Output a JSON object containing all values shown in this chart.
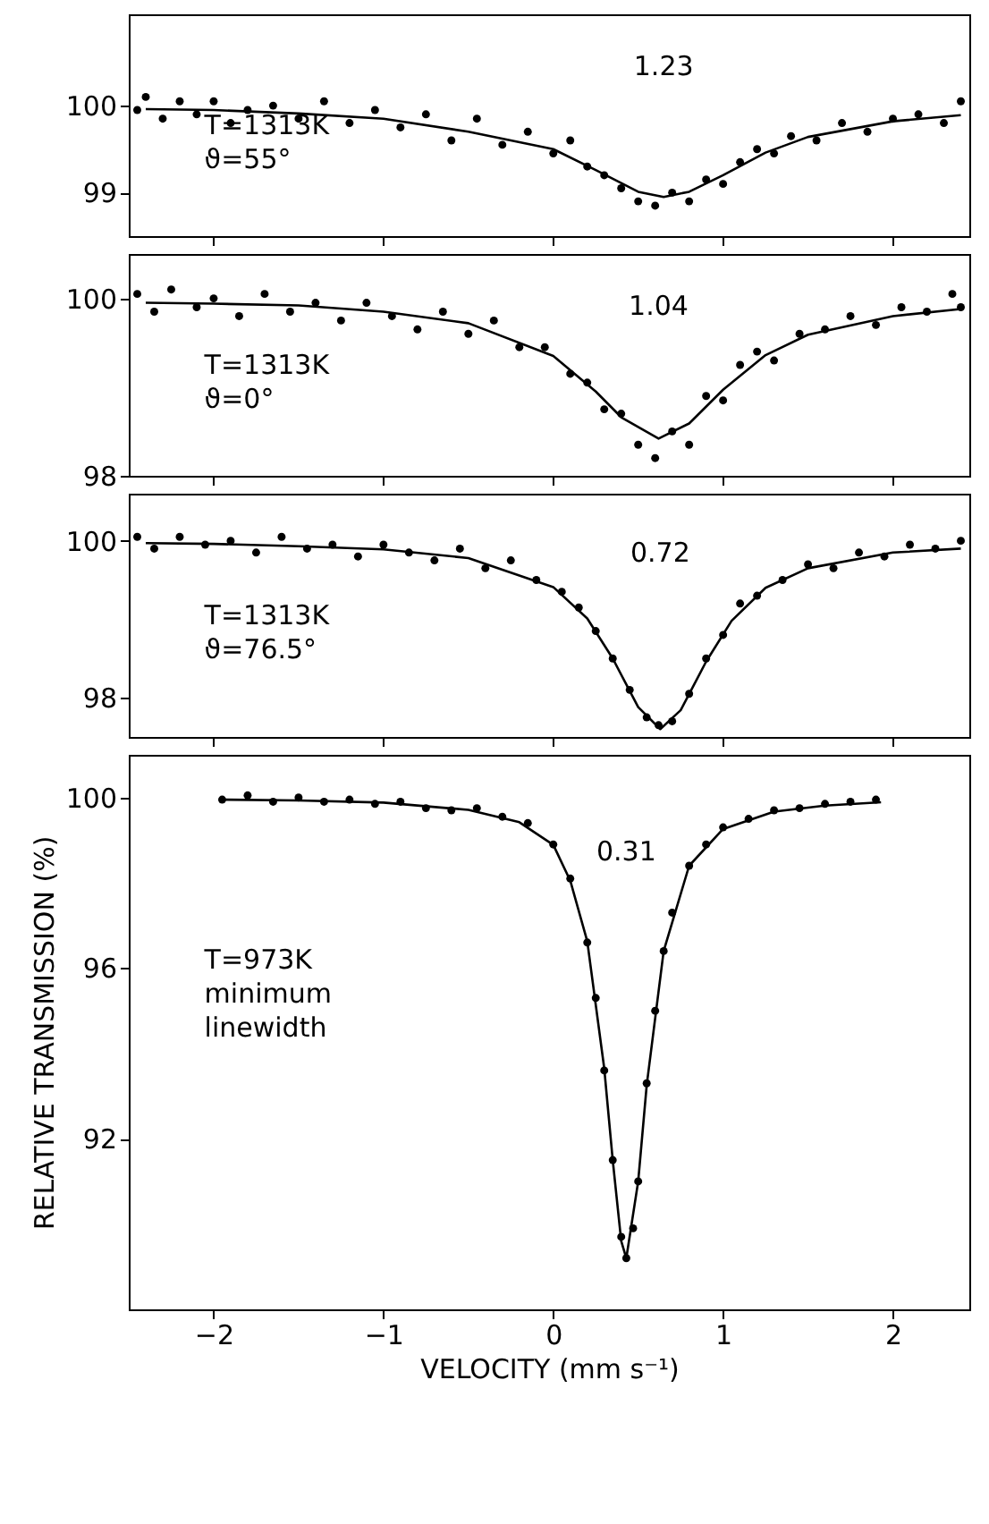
{
  "chart_data": [
    {
      "type": "scatter",
      "xlim": [
        -2.5,
        2.45
      ],
      "xticks": [
        -2,
        -1,
        0,
        1,
        2
      ],
      "ylim": [
        98.5,
        101.05
      ],
      "yticks": [
        99,
        100
      ],
      "tick_labels": "y",
      "annotations": [
        "T=1313K",
        "ϑ=55°",
        "1.23"
      ],
      "series": [
        {
          "type": "scatter",
          "marker": "circle",
          "color": "#000000",
          "x": [
            -2.45,
            -2.4,
            -2.3,
            -2.2,
            -2.1,
            -2.0,
            -1.9,
            -1.8,
            -1.65,
            -1.5,
            -1.35,
            -1.2,
            -1.05,
            -0.9,
            -0.75,
            -0.6,
            -0.45,
            -0.3,
            -0.15,
            0,
            0.1,
            0.2,
            0.3,
            0.4,
            0.5,
            0.6,
            0.7,
            0.8,
            0.9,
            1.0,
            1.1,
            1.2,
            1.3,
            1.4,
            1.55,
            1.7,
            1.85,
            2.0,
            2.15,
            2.3,
            2.4
          ],
          "values": [
            99.95,
            100.1,
            99.85,
            100.05,
            99.9,
            100.05,
            99.8,
            99.95,
            100.0,
            99.85,
            100.05,
            99.8,
            99.95,
            99.75,
            99.9,
            99.6,
            99.85,
            99.55,
            99.7,
            99.45,
            99.6,
            99.3,
            99.2,
            99.05,
            98.9,
            98.85,
            99.0,
            98.9,
            99.15,
            99.1,
            99.35,
            99.5,
            99.45,
            99.65,
            99.6,
            99.8,
            99.7,
            99.85,
            99.9,
            99.8,
            100.05
          ]
        },
        {
          "type": "line",
          "color": "#000000",
          "x": [
            -2.4,
            -2,
            -1.5,
            -1,
            -0.5,
            0,
            0.25,
            0.5,
            0.65,
            0.8,
            1.0,
            1.25,
            1.5,
            2.0,
            2.4
          ],
          "values": [
            99.96,
            99.95,
            99.91,
            99.85,
            99.7,
            99.5,
            99.26,
            99.01,
            98.95,
            99.01,
            99.2,
            99.46,
            99.64,
            99.82,
            99.89
          ]
        }
      ]
    },
    {
      "type": "scatter",
      "xlim": [
        -2.5,
        2.45
      ],
      "xticks": [
        -2,
        -1,
        0,
        1,
        2
      ],
      "ylim": [
        98,
        100.5
      ],
      "yticks": [
        98,
        100
      ],
      "tick_labels": "y",
      "annotations": [
        "T=1313K",
        "ϑ=0°",
        "1.04"
      ],
      "series": [
        {
          "type": "scatter",
          "marker": "circle",
          "color": "#000000",
          "x": [
            -2.45,
            -2.35,
            -2.25,
            -2.1,
            -2.0,
            -1.85,
            -1.7,
            -1.55,
            -1.4,
            -1.25,
            -1.1,
            -0.95,
            -0.8,
            -0.65,
            -0.5,
            -0.35,
            -0.2,
            -0.05,
            0.1,
            0.2,
            0.3,
            0.4,
            0.5,
            0.6,
            0.7,
            0.8,
            0.9,
            1.0,
            1.1,
            1.2,
            1.3,
            1.45,
            1.6,
            1.75,
            1.9,
            2.05,
            2.2,
            2.35,
            2.4
          ],
          "values": [
            100.05,
            99.85,
            100.1,
            99.9,
            100.0,
            99.8,
            100.05,
            99.85,
            99.95,
            99.75,
            99.95,
            99.8,
            99.65,
            99.85,
            99.6,
            99.75,
            99.45,
            99.45,
            99.15,
            99.05,
            98.75,
            98.7,
            98.35,
            98.2,
            98.5,
            98.35,
            98.9,
            98.85,
            99.25,
            99.4,
            99.3,
            99.6,
            99.65,
            99.8,
            99.7,
            99.9,
            99.85,
            100.05,
            99.9
          ]
        },
        {
          "type": "line",
          "color": "#000000",
          "x": [
            -2.4,
            -2,
            -1.5,
            -1,
            -0.5,
            0,
            0.25,
            0.4,
            0.62,
            0.8,
            1.0,
            1.25,
            1.5,
            2.0,
            2.4
          ],
          "values": [
            99.95,
            99.94,
            99.92,
            99.85,
            99.72,
            99.35,
            98.95,
            98.66,
            98.42,
            98.59,
            98.97,
            99.36,
            99.59,
            99.8,
            99.88
          ]
        }
      ]
    },
    {
      "type": "scatter",
      "xlim": [
        -2.5,
        2.45
      ],
      "xticks": [
        -2,
        -1,
        0,
        1,
        2
      ],
      "ylim": [
        97.5,
        100.6
      ],
      "yticks": [
        98,
        100
      ],
      "tick_labels": "y",
      "annotations": [
        "T=1313K",
        "ϑ=76.5°",
        "0.72"
      ],
      "series": [
        {
          "type": "scatter",
          "marker": "circle",
          "color": "#000000",
          "x": [
            -2.45,
            -2.35,
            -2.2,
            -2.05,
            -1.9,
            -1.75,
            -1.6,
            -1.45,
            -1.3,
            -1.15,
            -1.0,
            -0.85,
            -0.7,
            -0.55,
            -0.4,
            -0.25,
            -0.1,
            0.05,
            0.15,
            0.25,
            0.35,
            0.45,
            0.55,
            0.62,
            0.7,
            0.8,
            0.9,
            1.0,
            1.1,
            1.2,
            1.35,
            1.5,
            1.65,
            1.8,
            1.95,
            2.1,
            2.25,
            2.4
          ],
          "values": [
            100.05,
            99.9,
            100.05,
            99.95,
            100.0,
            99.85,
            100.05,
            99.9,
            99.95,
            99.8,
            99.95,
            99.85,
            99.75,
            99.9,
            99.65,
            99.75,
            99.5,
            99.35,
            99.15,
            98.85,
            98.5,
            98.1,
            97.75,
            97.65,
            97.7,
            98.05,
            98.5,
            98.8,
            99.2,
            99.3,
            99.5,
            99.7,
            99.65,
            99.85,
            99.8,
            99.95,
            99.9,
            100.0
          ]
        },
        {
          "type": "line",
          "color": "#000000",
          "x": [
            -2.4,
            -2,
            -1.5,
            -1,
            -0.5,
            0,
            0.2,
            0.35,
            0.5,
            0.63,
            0.75,
            0.9,
            1.05,
            1.25,
            1.5,
            2.0,
            2.4
          ],
          "values": [
            99.97,
            99.96,
            99.93,
            99.89,
            99.78,
            99.41,
            99.01,
            98.5,
            97.88,
            97.6,
            97.84,
            98.46,
            98.98,
            99.4,
            99.65,
            99.85,
            99.9
          ]
        }
      ]
    },
    {
      "type": "scatter",
      "xlim": [
        -2.5,
        2.45
      ],
      "xticks": [
        -2,
        -1,
        0,
        1,
        2
      ],
      "ylim": [
        88,
        101
      ],
      "yticks": [
        92,
        96,
        100
      ],
      "xlabel": "VELOCITY (mm s⁻¹)",
      "ylabel": "RELATIVE TRANSMISSION (%)",
      "annotations": [
        "T=973K",
        "minimum",
        "linewidth",
        "0.31"
      ],
      "series": [
        {
          "type": "scatter",
          "marker": "circle",
          "color": "#000000",
          "x": [
            -1.95,
            -1.8,
            -1.65,
            -1.5,
            -1.35,
            -1.2,
            -1.05,
            -0.9,
            -0.75,
            -0.6,
            -0.45,
            -0.3,
            -0.15,
            0,
            0.1,
            0.2,
            0.25,
            0.3,
            0.35,
            0.4,
            0.43,
            0.47,
            0.5,
            0.55,
            0.6,
            0.65,
            0.7,
            0.8,
            0.9,
            1.0,
            1.15,
            1.3,
            1.45,
            1.6,
            1.75,
            1.9
          ],
          "values": [
            99.95,
            100.05,
            99.9,
            100.0,
            99.9,
            99.95,
            99.85,
            99.9,
            99.75,
            99.7,
            99.75,
            99.55,
            99.4,
            98.9,
            98.1,
            96.6,
            95.3,
            93.6,
            91.5,
            89.7,
            89.2,
            89.9,
            91.0,
            93.3,
            95.0,
            96.4,
            97.3,
            98.4,
            98.9,
            99.3,
            99.5,
            99.7,
            99.75,
            99.85,
            99.9,
            99.95
          ]
        },
        {
          "type": "line",
          "color": "#000000",
          "x": [
            -1.95,
            -1.5,
            -1,
            -0.5,
            -0.2,
            0,
            0.1,
            0.2,
            0.3,
            0.35,
            0.4,
            0.43,
            0.5,
            0.55,
            0.65,
            0.8,
            1.0,
            1.3,
            1.6,
            1.93
          ],
          "values": [
            99.95,
            99.93,
            99.88,
            99.71,
            99.42,
            98.89,
            98.05,
            96.63,
            93.65,
            91.5,
            89.6,
            89.2,
            91.0,
            93.25,
            96.4,
            98.4,
            99.26,
            99.67,
            99.81,
            99.89
          ]
        }
      ]
    }
  ]
}
